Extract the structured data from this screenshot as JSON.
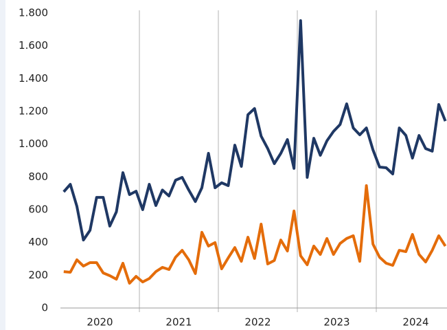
{
  "chart_data": {
    "type": "line",
    "categories": [
      null,
      null,
      null,
      null,
      null,
      "2020",
      null,
      null,
      null,
      null,
      null,
      null,
      null,
      null,
      null,
      null,
      null,
      "2021",
      null,
      null,
      null,
      null,
      null,
      null,
      null,
      null,
      null,
      null,
      null,
      "2022",
      null,
      null,
      null,
      null,
      null,
      null,
      null,
      null,
      null,
      null,
      null,
      "2023",
      null,
      null,
      null,
      null,
      null,
      null,
      null,
      null,
      null,
      null,
      null,
      "2024",
      null,
      null,
      null,
      null,
      null
    ],
    "series": [
      {
        "color": "#1f3864",
        "values": [
          709,
          755,
          620,
          415,
          474,
          675,
          675,
          500,
          587,
          826,
          692,
          713,
          600,
          755,
          625,
          720,
          684,
          780,
          797,
          720,
          650,
          734,
          944,
          734,
          764,
          747,
          994,
          864,
          1180,
          1217,
          1049,
          973,
          881,
          944,
          1028,
          852,
          1754,
          797,
          1036,
          932,
          1020,
          1078,
          1120,
          1246,
          1099,
          1057,
          1099,
          965,
          860,
          856,
          818,
          1099,
          1053,
          915,
          1053,
          973,
          957,
          1242,
          1141
        ]
      },
      {
        "color": "#e46c0a",
        "values": [
          222,
          218,
          294,
          256,
          277,
          277,
          214,
          197,
          176,
          273,
          151,
          193,
          159,
          180,
          222,
          248,
          235,
          310,
          352,
          294,
          210,
          462,
          378,
          399,
          239,
          306,
          369,
          285,
          432,
          302,
          512,
          269,
          290,
          415,
          348,
          592,
          319,
          264,
          378,
          327,
          424,
          327,
          394,
          424,
          441,
          285,
          747,
          390,
          310,
          273,
          260,
          352,
          344,
          449,
          327,
          281,
          352,
          441,
          378
        ]
      }
    ],
    "ylim": [
      0,
      1800
    ],
    "yticks": [
      0,
      200,
      400,
      600,
      800,
      {
        "value": 1000,
        "label": "1.000"
      },
      {
        "value": 1200,
        "label": "1.200"
      },
      {
        "value": 1400,
        "label": "1.400"
      },
      {
        "value": 1600,
        "label": "1.600"
      },
      {
        "value": 1800,
        "label": "1.800"
      }
    ]
  }
}
